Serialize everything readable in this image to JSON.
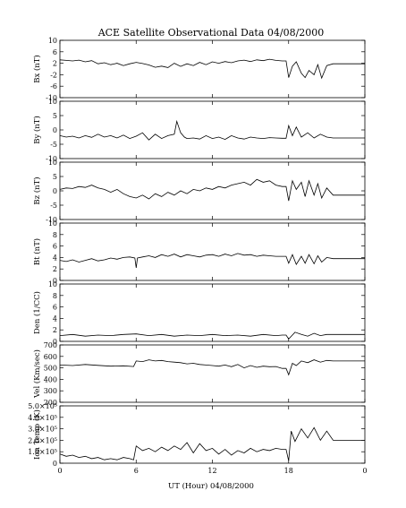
{
  "title": "ACE Satellite Observational Data   04/08/2000",
  "xlabel": "UT (Hour)   04/08/2000",
  "x_ticks": [
    "0",
    "6",
    "12",
    "18",
    "0"
  ],
  "chart_data": [
    {
      "type": "line",
      "ylabel": "Bx (nT)",
      "ylim": [
        -10,
        10
      ],
      "y_ticks": [
        "10",
        "6",
        "2",
        "-2",
        "-6",
        "-10"
      ],
      "x": [
        0,
        0.5,
        1,
        1.5,
        2,
        2.5,
        3,
        3.5,
        4,
        4.5,
        5,
        5.5,
        6,
        6.5,
        7,
        7.5,
        8,
        8.5,
        9,
        9.5,
        10,
        10.5,
        11,
        11.5,
        12,
        12.5,
        13,
        13.5,
        14,
        14.5,
        15,
        15.5,
        16,
        16.5,
        17,
        17.5,
        17.8,
        18,
        18.3,
        18.6,
        19,
        19.3,
        19.6,
        20,
        20.3,
        20.6,
        21,
        21.5,
        22,
        22.5,
        23,
        24
      ],
      "values": [
        3.2,
        3.0,
        2.8,
        3.1,
        2.5,
        2.9,
        1.8,
        2.2,
        1.5,
        2.0,
        1.2,
        1.8,
        2.3,
        1.9,
        1.4,
        0.6,
        1.0,
        0.5,
        2.0,
        0.9,
        1.8,
        1.2,
        2.3,
        1.5,
        2.5,
        2.0,
        2.6,
        2.2,
        2.8,
        3.1,
        2.6,
        3.2,
        2.9,
        3.4,
        3.0,
        2.8,
        2.8,
        -3.0,
        1.0,
        2.5,
        -1.5,
        -3.0,
        -0.5,
        -2.0,
        1.5,
        -3.2,
        1.2,
        1.8,
        1.8,
        1.8,
        1.8,
        1.8
      ]
    },
    {
      "type": "line",
      "ylabel": "By (nT)",
      "ylim": [
        -10,
        10
      ],
      "y_ticks": [
        "10",
        "5",
        "0",
        "-5",
        "-10"
      ],
      "x": [
        0,
        0.5,
        1,
        1.5,
        2,
        2.5,
        3,
        3.5,
        4,
        4.5,
        5,
        5.5,
        6,
        6.5,
        7,
        7.5,
        8,
        8.5,
        9,
        9.2,
        9.5,
        9.8,
        10,
        10.5,
        11,
        11.5,
        12,
        12.5,
        13,
        13.5,
        14,
        14.5,
        15,
        15.5,
        16,
        16.5,
        17,
        17.5,
        17.8,
        18,
        18.3,
        18.6,
        19,
        19.5,
        20,
        20.5,
        21,
        21.5,
        22,
        23,
        24
      ],
      "values": [
        -2.0,
        -2.5,
        -2.2,
        -2.8,
        -2.0,
        -2.6,
        -1.5,
        -2.5,
        -2.0,
        -2.8,
        -1.8,
        -3.0,
        -2.2,
        -1.0,
        -3.5,
        -1.5,
        -3.0,
        -2.0,
        -1.5,
        3.0,
        -1.0,
        -2.5,
        -3.0,
        -2.8,
        -3.2,
        -2.0,
        -3.0,
        -2.5,
        -3.3,
        -2.0,
        -2.8,
        -3.2,
        -2.5,
        -2.8,
        -3.0,
        -2.7,
        -2.8,
        -2.9,
        -2.9,
        1.5,
        -2.0,
        1.0,
        -2.5,
        -1.0,
        -2.8,
        -1.5,
        -2.5,
        -2.8,
        -2.8,
        -2.8,
        -2.8
      ]
    },
    {
      "type": "line",
      "ylabel": "Bz (nT)",
      "ylim": [
        -10,
        10
      ],
      "y_ticks": [
        "10",
        "5",
        "0",
        "-5",
        "-10"
      ],
      "x": [
        0,
        0.5,
        1,
        1.5,
        2,
        2.5,
        3,
        3.5,
        4,
        4.5,
        5,
        5.5,
        6,
        6.5,
        7,
        7.5,
        8,
        8.5,
        9,
        9.5,
        10,
        10.5,
        11,
        11.5,
        12,
        12.5,
        13,
        13.5,
        14,
        14.5,
        15,
        15.5,
        16,
        16.5,
        17,
        17.5,
        17.8,
        18,
        18.3,
        18.6,
        19,
        19.3,
        19.6,
        20,
        20.3,
        20.6,
        21,
        21.5,
        22,
        23,
        24
      ],
      "values": [
        0.5,
        1.0,
        0.8,
        1.5,
        1.2,
        2.0,
        1.0,
        0.5,
        -0.5,
        0.5,
        -1.0,
        -2.0,
        -2.5,
        -1.5,
        -2.8,
        -1.0,
        -2.0,
        -0.5,
        -1.5,
        0.0,
        -1.0,
        0.5,
        0.0,
        1.0,
        0.5,
        1.5,
        1.0,
        2.0,
        2.5,
        3.0,
        2.0,
        4.0,
        3.0,
        3.5,
        2.0,
        1.5,
        1.5,
        -3.5,
        3.5,
        0.5,
        3.0,
        -2.0,
        3.5,
        -1.5,
        2.5,
        -2.5,
        1.0,
        -1.5,
        -1.5,
        -1.5,
        -1.5
      ]
    },
    {
      "type": "line",
      "ylabel": "Bt (nT)",
      "ylim": [
        0,
        10
      ],
      "y_ticks": [
        "10",
        "8",
        "6",
        "4",
        "2",
        "0"
      ],
      "x": [
        0,
        0.5,
        1,
        1.5,
        2,
        2.5,
        3,
        3.5,
        4,
        4.5,
        5,
        5.5,
        5.9,
        6,
        6.1,
        6.5,
        7,
        7.5,
        8,
        8.5,
        9,
        9.5,
        10,
        10.5,
        11,
        11.5,
        12,
        12.5,
        13,
        13.5,
        14,
        14.5,
        15,
        15.5,
        16,
        16.5,
        17,
        17.5,
        17.8,
        18,
        18.3,
        18.6,
        19,
        19.3,
        19.6,
        20,
        20.3,
        20.6,
        21,
        21.5,
        22,
        23,
        24
      ],
      "values": [
        3.5,
        3.3,
        3.6,
        3.2,
        3.5,
        3.8,
        3.4,
        3.6,
        3.9,
        3.7,
        4.0,
        4.1,
        3.9,
        2.2,
        3.9,
        4.1,
        4.3,
        4.0,
        4.5,
        4.2,
        4.6,
        4.1,
        4.5,
        4.3,
        4.1,
        4.4,
        4.5,
        4.2,
        4.6,
        4.3,
        4.7,
        4.4,
        4.5,
        4.2,
        4.4,
        4.3,
        4.2,
        4.2,
        4.2,
        3.0,
        4.5,
        2.8,
        4.2,
        3.0,
        4.5,
        2.9,
        4.3,
        3.2,
        4.0,
        3.8,
        3.8,
        3.8,
        3.8
      ]
    },
    {
      "type": "line",
      "ylabel": "Den (1/CC)",
      "ylim": [
        0,
        10
      ],
      "y_ticks": [
        "10",
        "8",
        "6",
        "4",
        "2",
        "0"
      ],
      "x": [
        0,
        1,
        2,
        3,
        4,
        5,
        6,
        7,
        8,
        9,
        10,
        11,
        12,
        13,
        14,
        15,
        16,
        17,
        17.5,
        17.8,
        18,
        18.5,
        19,
        19.5,
        20,
        20.5,
        21,
        22,
        23,
        24
      ],
      "values": [
        1.0,
        1.2,
        0.9,
        1.1,
        1.0,
        1.2,
        1.3,
        1.0,
        1.2,
        0.9,
        1.1,
        1.0,
        1.2,
        1.0,
        1.1,
        0.9,
        1.2,
        1.0,
        1.1,
        1.1,
        0.4,
        1.6,
        1.2,
        0.9,
        1.4,
        1.0,
        1.2,
        1.2,
        1.2,
        1.2
      ]
    },
    {
      "type": "line",
      "ylabel": "Vel (Km/sec)",
      "ylim": [
        200,
        700
      ],
      "y_ticks": [
        "700",
        "600",
        "500",
        "400",
        "300",
        "200"
      ],
      "x": [
        0,
        1,
        2,
        3,
        4,
        5,
        5.8,
        6,
        6.5,
        7,
        7.5,
        8,
        8.5,
        9,
        9.5,
        10,
        10.5,
        11,
        11.5,
        12,
        12.5,
        13,
        13.5,
        14,
        14.5,
        15,
        15.5,
        16,
        16.5,
        17,
        17.5,
        17.8,
        18,
        18.3,
        18.6,
        19,
        19.5,
        20,
        20.5,
        21,
        21.5,
        22,
        23,
        24
      ],
      "values": [
        525,
        520,
        530,
        522,
        515,
        518,
        512,
        560,
        555,
        570,
        560,
        565,
        555,
        550,
        545,
        535,
        540,
        530,
        525,
        520,
        515,
        525,
        510,
        530,
        500,
        520,
        505,
        515,
        510,
        512,
        495,
        495,
        440,
        540,
        520,
        560,
        545,
        570,
        550,
        565,
        560,
        560,
        560,
        560
      ]
    },
    {
      "type": "line",
      "ylabel": "Ion Temp (K)",
      "ylim": [
        0,
        500000
      ],
      "y_ticks": [
        "5.0×10⁵",
        "4.0×10⁵",
        "3.0×10⁵",
        "2.0×10⁵",
        "1.0×10⁵",
        "0"
      ],
      "x": [
        0,
        0.5,
        1,
        1.5,
        2,
        2.5,
        3,
        3.5,
        4,
        4.5,
        5,
        5.5,
        5.8,
        6,
        6.5,
        7,
        7.5,
        8,
        8.5,
        9,
        9.5,
        10,
        10.5,
        11,
        11.5,
        12,
        12.5,
        13,
        13.5,
        14,
        14.5,
        15,
        15.5,
        16,
        16.5,
        17,
        17.5,
        17.8,
        18,
        18.2,
        18.5,
        19,
        19.5,
        20,
        20.5,
        21,
        21.5,
        22,
        23,
        24
      ],
      "values": [
        80000,
        60000,
        70000,
        50000,
        60000,
        40000,
        50000,
        30000,
        40000,
        30000,
        50000,
        40000,
        30000,
        150000,
        110000,
        130000,
        100000,
        140000,
        110000,
        150000,
        120000,
        180000,
        90000,
        170000,
        110000,
        130000,
        80000,
        120000,
        70000,
        110000,
        90000,
        130000,
        100000,
        120000,
        110000,
        130000,
        120000,
        120000,
        20000,
        280000,
        190000,
        300000,
        220000,
        310000,
        200000,
        280000,
        200000,
        200000,
        200000,
        200000
      ]
    }
  ]
}
